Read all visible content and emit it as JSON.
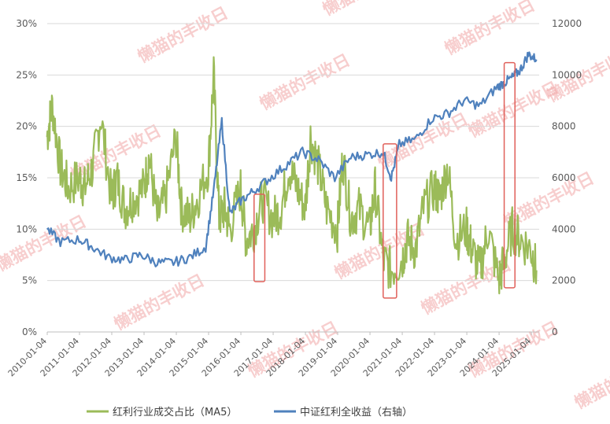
{
  "chart_data": {
    "type": "line",
    "title": "",
    "x_ticks": [
      "2010-01-04",
      "2011-01-04",
      "2012-01-04",
      "2013-01-04",
      "2014-01-04",
      "2015-01-04",
      "2016-01-04",
      "2017-01-04",
      "2018-01-04",
      "2019-01-04",
      "2020-01-04",
      "2021-01-04",
      "2022-01-04",
      "2023-01-04",
      "2024-01-04",
      "2025-01-04"
    ],
    "y_left": {
      "ticks": [
        "0%",
        "5%",
        "10%",
        "15%",
        "20%",
        "25%",
        "30%"
      ],
      "range": [
        0,
        30
      ],
      "unit": "%"
    },
    "y_right": {
      "ticks": [
        "0",
        "2000",
        "4000",
        "6000",
        "8000",
        "10000",
        "12000"
      ],
      "range": [
        0,
        12000
      ]
    },
    "grid": true,
    "legend_position": "bottom",
    "series": [
      {
        "name": "红利行业成交占比（MA5）",
        "axis": "left",
        "color": "#9bbb59",
        "x": [
          "2010-01",
          "2010-03",
          "2010-06",
          "2010-09",
          "2011-01",
          "2011-03",
          "2011-06",
          "2011-09",
          "2012-01",
          "2012-03",
          "2012-06",
          "2012-09",
          "2013-01",
          "2013-03",
          "2013-06",
          "2013-09",
          "2014-01",
          "2014-03",
          "2014-06",
          "2014-09",
          "2015-01",
          "2015-03",
          "2015-05",
          "2015-07",
          "2015-09",
          "2016-01",
          "2016-03",
          "2016-06",
          "2016-09",
          "2017-01",
          "2017-04",
          "2017-07",
          "2017-10",
          "2018-01",
          "2018-03",
          "2018-06",
          "2018-09",
          "2019-01",
          "2019-03",
          "2019-06",
          "2019-09",
          "2020-01",
          "2020-03",
          "2020-06",
          "2020-09",
          "2021-01",
          "2021-03",
          "2021-06",
          "2021-09",
          "2022-01",
          "2022-03",
          "2022-06",
          "2022-09",
          "2023-01",
          "2023-03",
          "2023-06",
          "2023-09",
          "2024-01",
          "2024-03",
          "2024-06",
          "2024-09",
          "2025-01",
          "2025-03"
        ],
        "values": [
          19,
          22,
          16,
          14,
          15,
          14,
          16,
          21,
          13,
          15,
          12,
          13,
          14,
          17,
          11,
          13,
          19,
          12,
          11,
          13,
          16,
          25,
          11,
          12,
          10,
          14,
          9,
          10,
          13,
          11,
          12,
          16,
          14,
          12,
          19,
          16,
          12,
          10,
          17,
          11,
          12,
          10,
          14,
          7,
          6,
          7,
          9,
          8,
          12,
          14,
          13,
          16,
          9,
          10,
          8,
          6,
          10,
          5,
          7,
          10,
          9,
          8,
          6
        ],
        "x_range": [
          "2010-01",
          "2025-04"
        ]
      },
      {
        "name": "中证红利全收益（右轴）",
        "axis": "right",
        "color": "#4f81bd",
        "x": [
          "2010-01",
          "2010-06",
          "2011-01",
          "2011-06",
          "2011-12",
          "2012-06",
          "2012-12",
          "2013-06",
          "2013-12",
          "2014-06",
          "2014-12",
          "2015-03",
          "2015-06",
          "2015-09",
          "2016-01",
          "2016-06",
          "2016-12",
          "2017-06",
          "2017-12",
          "2018-06",
          "2018-12",
          "2019-06",
          "2019-12",
          "2020-06",
          "2020-09",
          "2020-12",
          "2021-06",
          "2021-12",
          "2022-06",
          "2022-12",
          "2023-06",
          "2023-12",
          "2024-03",
          "2024-06",
          "2024-09",
          "2024-12",
          "2025-03"
        ],
        "values": [
          4000,
          3500,
          3600,
          3300,
          2900,
          2800,
          3000,
          2700,
          2700,
          2900,
          3300,
          5500,
          8200,
          4600,
          5100,
          5500,
          6000,
          6500,
          7000,
          6700,
          6000,
          6800,
          6900,
          7000,
          6000,
          7300,
          7500,
          8300,
          8500,
          9000,
          8800,
          9500,
          9700,
          9900,
          10200,
          10800,
          10600
        ]
      }
    ],
    "annotations": [
      "boxed region 2016-06 to 2016-09",
      "boxed region 2020-06 to 2020-09",
      "boxed region 2024-03 to 2024-06"
    ],
    "watermark": "懒猫的丰收日"
  },
  "legend": {
    "green": "红利行业成交占比（MA5）",
    "blue": "中证红利全收益（右轴）"
  },
  "colors": {
    "green": "#9bbb59",
    "blue": "#4f81bd",
    "box": "#e0605a"
  }
}
